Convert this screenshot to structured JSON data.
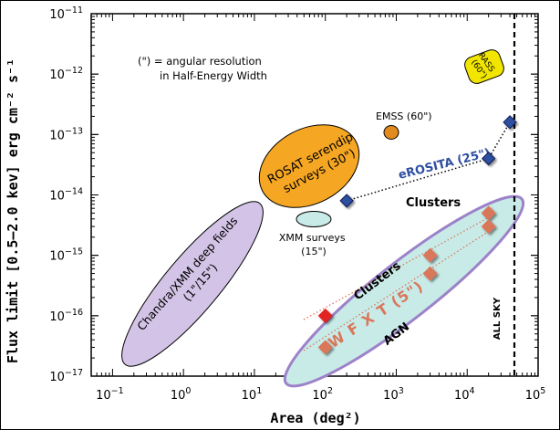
{
  "chart_data": {
    "type": "scatter",
    "xlabel": "Area (deg²)",
    "ylabel": "Flux limit [0.5–2.0 kev] erg cm⁻² s⁻¹",
    "xscale": "log",
    "yscale": "log",
    "xlim": [
      0.05,
      100000
    ],
    "ylim": [
      1e-17,
      1e-11
    ],
    "x_ticks": [
      {
        "value": 0.1,
        "base": "10",
        "exp": "−1"
      },
      {
        "value": 1,
        "base": "10",
        "exp": "0"
      },
      {
        "value": 10,
        "base": "10",
        "exp": "1"
      },
      {
        "value": 100,
        "base": "10",
        "exp": "2"
      },
      {
        "value": 1000,
        "base": "10",
        "exp": "3"
      },
      {
        "value": 10000,
        "base": "10",
        "exp": "4"
      },
      {
        "value": 100000,
        "base": "10",
        "exp": "5"
      }
    ],
    "y_ticks": [
      {
        "value": 1e-17,
        "base": "10",
        "exp": "−17"
      },
      {
        "value": 1e-16,
        "base": "10",
        "exp": "−16"
      },
      {
        "value": 1e-15,
        "base": "10",
        "exp": "−15"
      },
      {
        "value": 1e-14,
        "base": "10",
        "exp": "−14"
      },
      {
        "value": 1e-13,
        "base": "10",
        "exp": "−13"
      },
      {
        "value": 1e-12,
        "base": "10",
        "exp": "−12"
      },
      {
        "value": 1e-11,
        "base": "10",
        "exp": "−11"
      }
    ],
    "grid": false,
    "note": [
      "(\") = angular resolution",
      "in Half-Energy Width"
    ],
    "regions": [
      {
        "label": [
          "Chandra/XMM deep fields",
          "(1\"/15\")"
        ],
        "color": "#d3c3e6",
        "shape": "tilted-ellipse",
        "center": [
          1.5,
          3e-16
        ]
      },
      {
        "label": [
          "ROSAT serendip",
          "surveys (30\")"
        ],
        "color": "#f5a623",
        "shape": "tilted-ellipse",
        "center": [
          30,
          4e-14
        ]
      },
      {
        "label": [
          "XMM surveys",
          "(15\")"
        ],
        "color": "#c8ebe8",
        "shape": "ellipse",
        "center": [
          55,
          7e-15
        ]
      },
      {
        "label": [
          "EMSS (60\")"
        ],
        "color": "#e08a20",
        "shape": "ellipse",
        "center": [
          780,
          1.1e-13
        ]
      },
      {
        "label": [
          "RASS",
          "(60\")"
        ],
        "color": "#f2e600",
        "shape": "rounded-rect",
        "center": [
          20000,
          1.2e-12
        ]
      },
      {
        "label": [
          "W F X T (5\")"
        ],
        "color": "#c8ebe8",
        "shape": "tilted-ellipse",
        "center": [
          1500,
          1e-15
        ]
      }
    ],
    "series": [
      {
        "name": "eROSITA (25\")",
        "color": "#2f4fa0",
        "marker": "diamond",
        "points": [
          {
            "x": 200,
            "y": 8e-15
          },
          {
            "x": 20000,
            "y": 4e-14
          },
          {
            "x": 40000,
            "y": 1.6e-13
          }
        ]
      },
      {
        "name": "W F X T (5\")",
        "color": "#d9775a",
        "marker": "diamond",
        "points": [
          {
            "x": 100,
            "y": 1e-16,
            "highlight": true
          },
          {
            "x": 100,
            "y": 3e-17
          },
          {
            "x": 3000,
            "y": 1e-15
          },
          {
            "x": 3000,
            "y": 5e-16
          },
          {
            "x": 20000,
            "y": 5e-15
          },
          {
            "x": 20000,
            "y": 3e-15
          }
        ]
      }
    ],
    "annotations": [
      {
        "text": "Clusters",
        "x": 3000,
        "y": 1.2e-14
      },
      {
        "text": "Clusters",
        "x": 1000,
        "y": 8e-16
      },
      {
        "text": "AGN",
        "x": 1000,
        "y": 1.3e-16
      },
      {
        "text": "ALL SKY",
        "x": 40000,
        "y": 1.5e-16
      }
    ],
    "all_sky_x": 41253,
    "highlight_color": "#e32323"
  }
}
